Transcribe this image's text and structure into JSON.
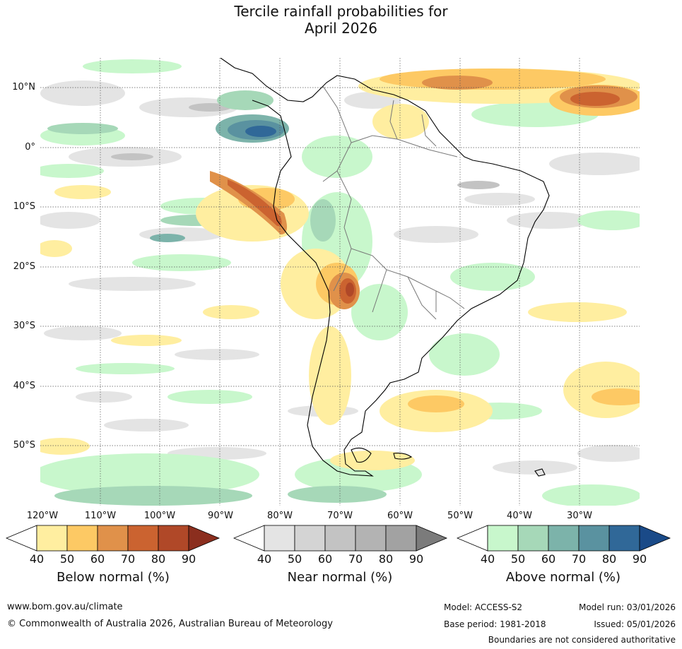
{
  "title": {
    "line1": "Tercile rainfall probabilities for",
    "line2": "April 2026"
  },
  "map": {
    "region": "South America",
    "lat_labels": [
      "10°N",
      "0°",
      "10°S",
      "20°S",
      "30°S",
      "40°S",
      "50°S"
    ],
    "lon_labels": [
      "120°W",
      "110°W",
      "100°W",
      "90°W",
      "80°W",
      "70°W",
      "60°W",
      "50°W",
      "40°W",
      "30°W"
    ]
  },
  "legends": [
    {
      "name": "Below normal (%)",
      "ticks": [
        "40",
        "50",
        "60",
        "70",
        "80",
        "90"
      ],
      "colors": [
        "#ffeea0",
        "#fdc964",
        "#e0914a",
        "#cb6330",
        "#b04828",
        "#8b2e1e"
      ]
    },
    {
      "name": "Near normal (%)",
      "ticks": [
        "40",
        "50",
        "60",
        "70",
        "80",
        "90"
      ],
      "colors": [
        "#e4e4e4",
        "#d4d4d4",
        "#c3c3c3",
        "#b3b3b3",
        "#a2a2a2",
        "#7b7b7b"
      ]
    },
    {
      "name": "Above normal (%)",
      "ticks": [
        "40",
        "50",
        "60",
        "70",
        "80",
        "90"
      ],
      "colors": [
        "#c8f7cc",
        "#a6d8b8",
        "#7cb3aa",
        "#5a92a0",
        "#306898",
        "#1a4a88"
      ]
    }
  ],
  "footer": {
    "url": "www.bom.gov.au/climate",
    "copyright": "© Commonwealth of Australia 2026, Australian Bureau of Meteorology",
    "model": "Model: ACCESS-S2",
    "base_period": "Base period: 1981-2018",
    "model_run": "Model run: 03/01/2026",
    "issued": "Issued: 05/01/2026",
    "disclaimer": "Boundaries are not considered authoritative"
  }
}
